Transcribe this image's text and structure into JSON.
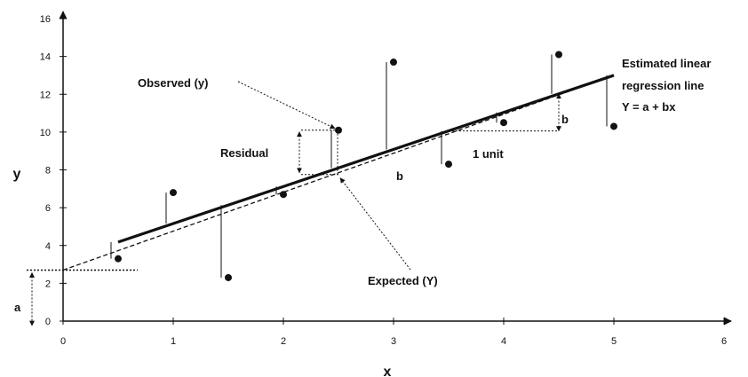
{
  "chart_data": {
    "type": "scatter",
    "xlabel": "x",
    "ylabel": "y",
    "xlim": [
      0,
      6
    ],
    "ylim": [
      0,
      16
    ],
    "x_ticks": [
      0,
      1,
      2,
      3,
      4,
      5,
      6
    ],
    "y_ticks": [
      0,
      2,
      4,
      6,
      8,
      10,
      12,
      14,
      16
    ],
    "grid": false,
    "points": [
      {
        "x": 0.5,
        "y": 3.3
      },
      {
        "x": 1.0,
        "y": 6.8
      },
      {
        "x": 1.5,
        "y": 2.3
      },
      {
        "x": 2.0,
        "y": 6.7
      },
      {
        "x": 2.5,
        "y": 10.1
      },
      {
        "x": 3.0,
        "y": 13.7
      },
      {
        "x": 3.5,
        "y": 8.3
      },
      {
        "x": 4.0,
        "y": 10.5
      },
      {
        "x": 4.5,
        "y": 14.1
      },
      {
        "x": 5.0,
        "y": 10.3
      }
    ],
    "estimated_line": {
      "intercept": 3.2,
      "slope": 1.96,
      "x_range": [
        0.5,
        5.0
      ]
    },
    "expected_line": {
      "intercept": 2.7,
      "slope": 2.06,
      "x_range": [
        0.0,
        5.0
      ]
    },
    "annotations": {
      "regression_label_line1": "Estimated linear",
      "regression_label_line2": "regression line",
      "regression_label_line3": "Y = a + bx",
      "observed": "Observed (y)",
      "expected": "Expected (Y)",
      "residual": "Residual",
      "unit": "1 unit",
      "slope_right": "b",
      "slope_mid": "b",
      "intercept": "a"
    }
  }
}
